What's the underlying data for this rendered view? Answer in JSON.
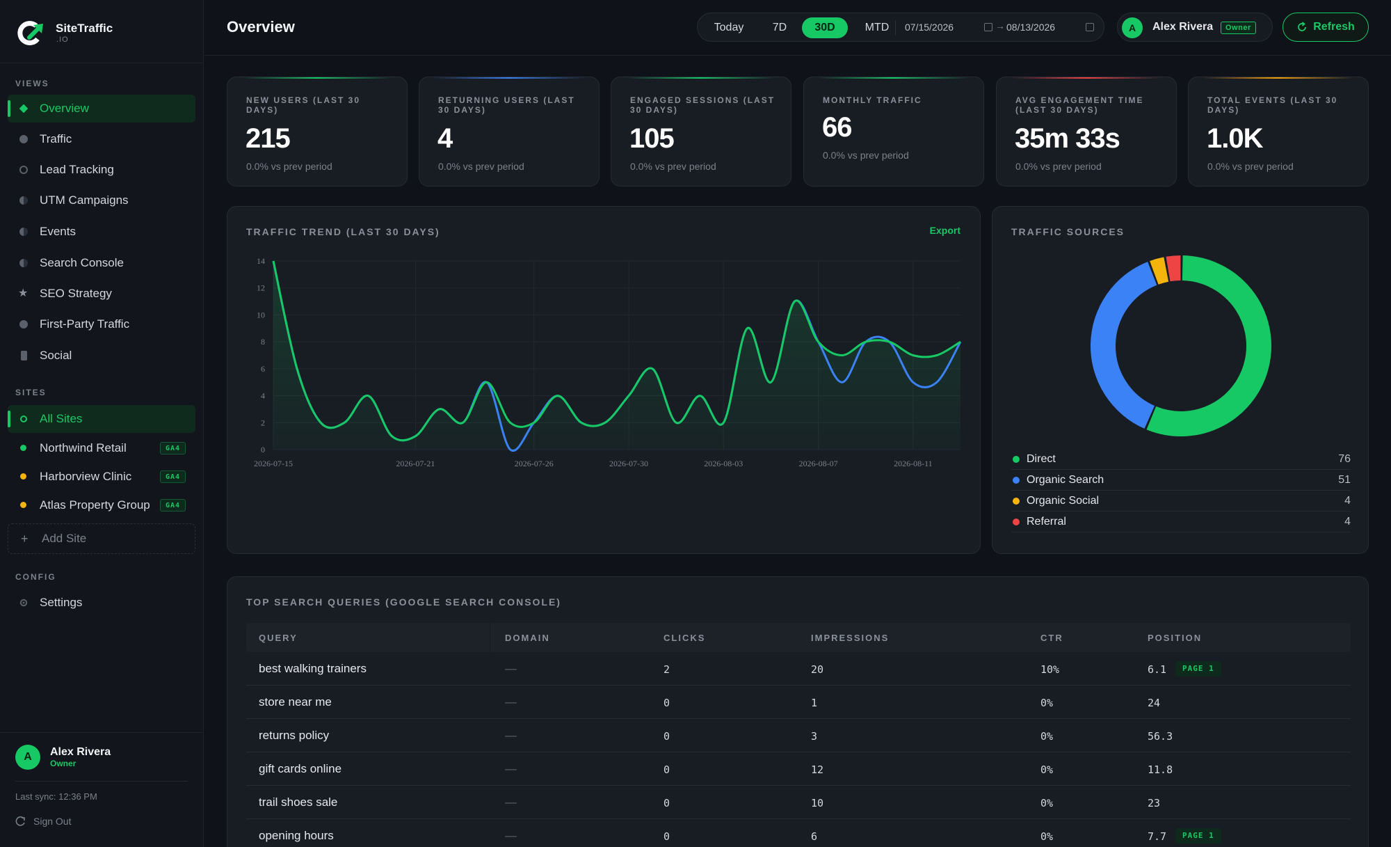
{
  "brand": {
    "name": "SiteTraffic",
    "sub": ".IO"
  },
  "sidebar": {
    "views_label": "VIEWS",
    "views": [
      {
        "label": "Overview",
        "icon": "diamond-icon",
        "active": true
      },
      {
        "label": "Traffic",
        "icon": "circle-icon"
      },
      {
        "label": "Lead Tracking",
        "icon": "ring-icon"
      },
      {
        "label": "UTM Campaigns",
        "icon": "half-circle-icon"
      },
      {
        "label": "Events",
        "icon": "half-circle-icon"
      },
      {
        "label": "Search Console",
        "icon": "half-circle-icon"
      },
      {
        "label": "SEO Strategy",
        "icon": "star-icon"
      },
      {
        "label": "First-Party Traffic",
        "icon": "circle-icon"
      },
      {
        "label": "Social",
        "icon": "phone-icon"
      }
    ],
    "sites_label": "SITES",
    "sites": [
      {
        "label": "All Sites",
        "active": true
      },
      {
        "label": "Northwind Retail",
        "badge": "GA4",
        "color": "#17c964"
      },
      {
        "label": "Harborview Clinic",
        "badge": "GA4",
        "color": "#f5b40b"
      },
      {
        "label": "Atlas Property Group",
        "badge": "GA4",
        "color": "#f5b40b"
      }
    ],
    "add_site": "Add Site",
    "config_label": "CONFIG",
    "settings": "Settings",
    "user": {
      "initial": "A",
      "name": "Alex Rivera",
      "role": "Owner"
    },
    "last_sync": "Last sync: 12:36 PM",
    "sign_out": "Sign Out"
  },
  "header": {
    "title": "Overview",
    "ranges": [
      "Today",
      "7D",
      "30D",
      "MTD"
    ],
    "active_range": "30D",
    "date_from": "07/15/2026",
    "date_to": "08/13/2026",
    "user_initial": "A",
    "user_name": "Alex Rivera",
    "user_role": "Owner",
    "refresh": "Refresh"
  },
  "kpis": [
    {
      "label": "New Users (Last 30 Days)",
      "value": "215",
      "sub": "0.0% vs prev period",
      "accent": "#17c964"
    },
    {
      "label": "Returning Users (Last 30 Days)",
      "value": "4",
      "sub": "0.0% vs prev period",
      "accent": "#3b82f6"
    },
    {
      "label": "Engaged Sessions (Last 30 Days)",
      "value": "105",
      "sub": "0.0% vs prev period",
      "accent": "#17c964"
    },
    {
      "label": "Monthly Traffic",
      "value": "66",
      "sub": "0.0% vs prev period",
      "accent": "#17c964"
    },
    {
      "label": "Avg Engagement Time (Last 30 Days)",
      "value": "35m 33s",
      "sub": "0.0% vs prev period",
      "accent": "#ef4444"
    },
    {
      "label": "Total Events (Last 30 Days)",
      "value": "1.0K",
      "sub": "0.0% vs prev period",
      "accent": "#f59e0b"
    }
  ],
  "trend": {
    "title": "TRAFFIC TREND (LAST 30 DAYS)",
    "export": "Export",
    "chart_data": {
      "type": "line",
      "x": [
        "2026-07-15",
        "2026-07-16",
        "2026-07-17",
        "2026-07-18",
        "2026-07-19",
        "2026-07-20",
        "2026-07-21",
        "2026-07-22",
        "2026-07-23",
        "2026-07-24",
        "2026-07-25",
        "2026-07-26",
        "2026-07-27",
        "2026-07-28",
        "2026-07-29",
        "2026-07-30",
        "2026-07-31",
        "2026-08-01",
        "2026-08-02",
        "2026-08-03",
        "2026-08-04",
        "2026-08-05",
        "2026-08-06",
        "2026-08-07",
        "2026-08-08",
        "2026-08-09",
        "2026-08-10",
        "2026-08-11",
        "2026-08-12",
        "2026-08-13"
      ],
      "x_ticks": [
        "2026-07-15",
        "2026-07-21",
        "2026-07-26",
        "2026-07-30",
        "2026-08-03",
        "2026-08-07",
        "2026-08-11"
      ],
      "ylim": [
        0,
        14
      ],
      "y_ticks": [
        0,
        2,
        4,
        6,
        8,
        10,
        12,
        14
      ],
      "series": [
        {
          "color": "#3b82f6",
          "values": [
            14,
            6,
            2,
            2,
            4,
            1,
            1,
            3,
            2,
            5,
            0,
            2,
            4,
            2,
            2,
            4,
            6,
            2,
            4,
            2,
            9,
            5,
            11,
            8,
            5,
            8,
            8,
            5,
            5,
            8
          ]
        },
        {
          "color": "#17c964",
          "values": [
            14,
            6,
            2,
            2,
            4,
            1,
            1,
            3,
            2,
            5,
            2,
            2,
            4,
            2,
            2,
            4,
            6,
            2,
            4,
            2,
            9,
            5,
            11,
            8,
            7,
            8,
            8,
            7,
            7,
            8
          ]
        }
      ]
    }
  },
  "sources": {
    "title": "TRAFFIC SOURCES",
    "chart_data": {
      "type": "pie",
      "donut": true,
      "slices": [
        {
          "name": "Direct",
          "value": 76,
          "color": "#17c964"
        },
        {
          "name": "Organic Search",
          "value": 51,
          "color": "#3b82f6"
        },
        {
          "name": "Organic Social",
          "value": 4,
          "color": "#f5b40b"
        },
        {
          "name": "Referral",
          "value": 4,
          "color": "#ef4444"
        }
      ]
    }
  },
  "queries": {
    "title": "TOP SEARCH QUERIES (GOOGLE SEARCH CONSOLE)",
    "columns": [
      "QUERY",
      "DOMAIN",
      "CLICKS",
      "IMPRESSIONS",
      "CTR",
      "POSITION"
    ],
    "rows": [
      {
        "query": "best walking trainers",
        "domain": "—",
        "clicks": "2",
        "impressions": "20",
        "ctr": "10%",
        "position": "6.1",
        "badge": "PAGE 1"
      },
      {
        "query": "store near me",
        "domain": "—",
        "clicks": "0",
        "impressions": "1",
        "ctr": "0%",
        "position": "24"
      },
      {
        "query": "returns policy",
        "domain": "—",
        "clicks": "0",
        "impressions": "3",
        "ctr": "0%",
        "position": "56.3"
      },
      {
        "query": "gift cards online",
        "domain": "—",
        "clicks": "0",
        "impressions": "12",
        "ctr": "0%",
        "position": "11.8"
      },
      {
        "query": "trail shoes sale",
        "domain": "—",
        "clicks": "0",
        "impressions": "10",
        "ctr": "0%",
        "position": "23"
      },
      {
        "query": "opening hours",
        "domain": "—",
        "clicks": "0",
        "impressions": "6",
        "ctr": "0%",
        "position": "7.7",
        "badge": "PAGE 1"
      }
    ]
  }
}
